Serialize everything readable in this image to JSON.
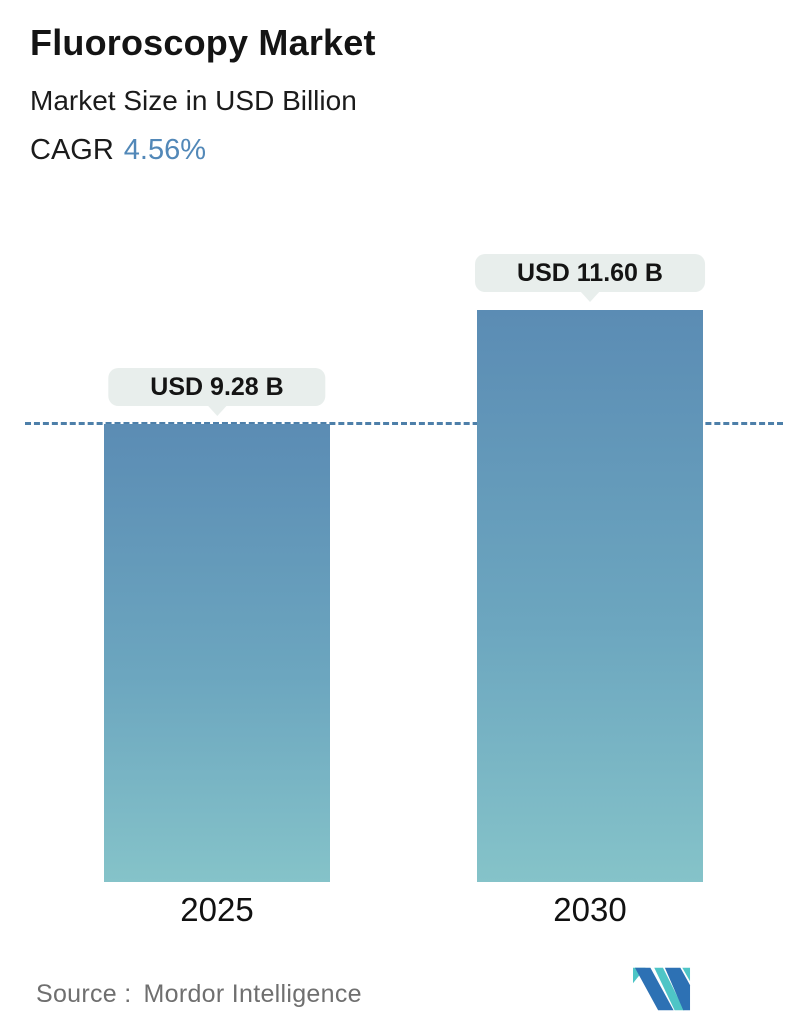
{
  "header": {
    "title": "Fluoroscopy Market",
    "subtitle": "Market Size in USD Billion",
    "cagr_label": "CAGR",
    "cagr_value": "4.56%"
  },
  "chart_data": {
    "type": "bar",
    "title": "Fluoroscopy Market",
    "subtitle": "Market Size in USD Billion",
    "cagr": "4.56%",
    "categories": [
      "2025",
      "2030"
    ],
    "values": [
      9.28,
      11.6
    ],
    "value_labels": [
      "USD 9.28 B",
      "USD 11.60 B"
    ],
    "unit": "USD Billion",
    "ylim": [
      0,
      11.6
    ],
    "grid": "off",
    "legend_position": "none",
    "reference_line": {
      "value": 9.28,
      "style": "dashed"
    },
    "colors": {
      "bar_gradient_top": "#5b8cb4",
      "bar_gradient_mid": "#6ca6bf",
      "bar_gradient_bottom": "#85c3c9",
      "reference_line": "#4d7fa9",
      "label_pill_bg": "#e8eeec",
      "cagr_accent": "#5288b8"
    }
  },
  "footer": {
    "source_label": "Source :",
    "source_value": "Mordor Intelligence",
    "logo_name": "mordor-intelligence-logo",
    "logo_colors": {
      "blue": "#2d71b4",
      "teal": "#4ec5c6"
    }
  }
}
